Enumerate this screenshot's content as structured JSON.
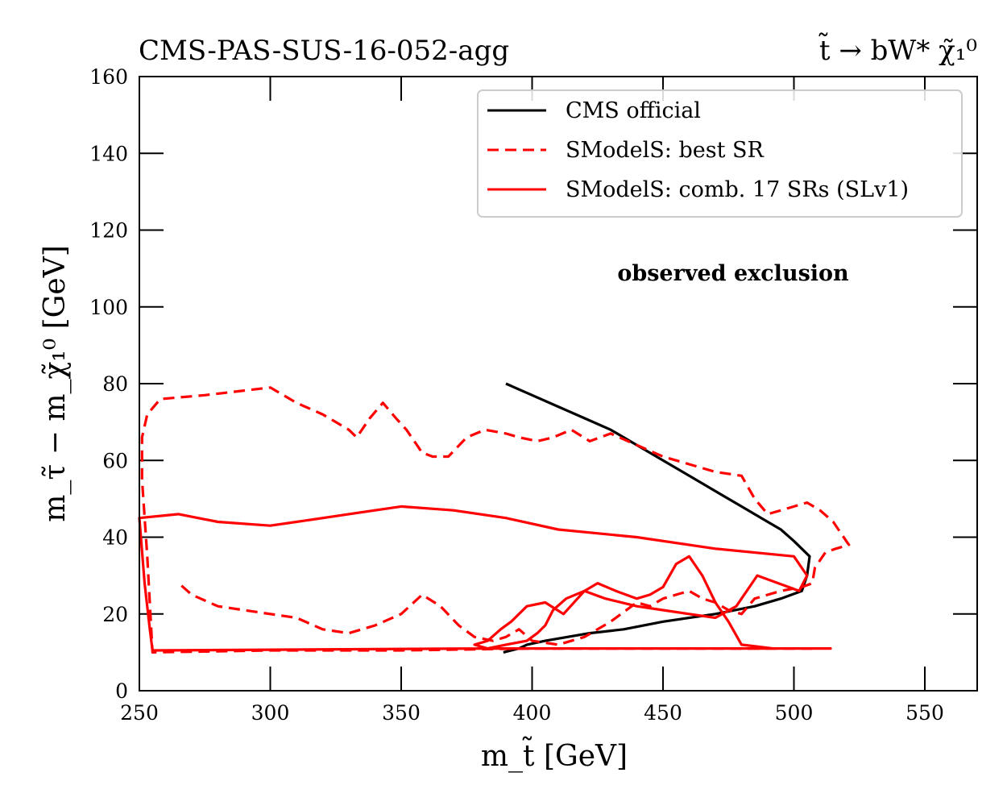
{
  "chart_data": {
    "type": "line",
    "title_left": "CMS-PAS-SUS-16-052-agg",
    "title_right": "t̃ → bW* χ̃₁⁰",
    "xlabel": "m_t̃ [GeV]",
    "ylabel": "m_τ̃ − m_χ̃₁⁰ [GeV]",
    "xlim": [
      250,
      570
    ],
    "ylim": [
      0,
      160
    ],
    "xticks": [
      250,
      300,
      350,
      400,
      450,
      500,
      550
    ],
    "yticks": [
      0,
      20,
      40,
      60,
      80,
      100,
      120,
      140,
      160
    ],
    "grid": false,
    "legend_position": "top-right",
    "annotation": "observed exclusion",
    "series": [
      {
        "name": "CMS official",
        "color": "#000000",
        "dash": "solid",
        "x": [
          390,
          400,
          410,
          420,
          430,
          440,
          450,
          460,
          470,
          480,
          490,
          495,
          500,
          506,
          505,
          503,
          495,
          485,
          470,
          450,
          435,
          422,
          405,
          398,
          395,
          389
        ],
        "y": [
          80,
          77,
          74,
          71,
          68,
          64,
          60,
          56,
          52,
          48,
          44,
          42,
          39,
          35,
          30,
          26,
          24,
          22,
          20,
          18,
          16,
          15,
          13,
          12,
          11,
          10
        ]
      },
      {
        "name": "SModelS: best SR",
        "color": "#ff0000",
        "dash": "dashed",
        "x": [
          507,
          480,
          440,
          400,
          350,
          300,
          255,
          253,
          251,
          251,
          253,
          258,
          275,
          300,
          310,
          320,
          325,
          330,
          333,
          338,
          343,
          348,
          352,
          355,
          358,
          362,
          368,
          375,
          382,
          390,
          395,
          402,
          408,
          415,
          422,
          430,
          440,
          450,
          460,
          470,
          480,
          485,
          490,
          495,
          500,
          505,
          510,
          515,
          520,
          521,
          516,
          512,
          508,
          507,
          503,
          495,
          485,
          480,
          475,
          470,
          465,
          460,
          455,
          450,
          445,
          440,
          430,
          420,
          410,
          400,
          395,
          390,
          385,
          378,
          372,
          365,
          358,
          350,
          340,
          330,
          320,
          310,
          300,
          290,
          280,
          270,
          265
        ],
        "y": [
          11,
          11,
          11,
          11,
          10.5,
          10.5,
          10,
          35,
          55,
          66,
          72,
          76,
          77,
          79,
          75,
          72,
          70,
          68,
          66,
          71,
          75,
          71,
          68,
          65,
          62,
          61,
          61,
          66,
          68,
          67,
          66,
          65,
          66,
          68,
          65,
          67,
          64,
          61,
          59,
          57,
          56,
          50,
          46,
          47,
          48,
          49,
          47,
          44,
          39,
          38,
          37,
          36,
          32,
          28,
          27,
          26,
          24,
          20,
          21,
          23,
          24,
          26,
          25,
          24,
          22,
          23,
          18,
          14,
          12,
          13,
          16,
          14,
          13,
          14,
          17,
          22,
          25,
          20,
          17,
          15,
          16,
          19,
          20,
          21,
          22,
          25,
          28
        ]
      },
      {
        "name": "SModelS: comb. 17 SRs (SLv1)",
        "color": "#ff0000",
        "dash": "solid",
        "x": [
          255,
          380,
          400,
          420,
          440,
          450,
          460,
          470,
          480,
          485,
          490,
          495,
          500,
          508,
          514,
          512,
          508,
          505,
          503,
          500,
          492,
          480,
          475,
          470,
          465,
          460,
          455,
          450,
          445,
          440,
          432,
          425,
          420,
          412,
          405,
          398,
          392,
          388,
          383,
          378,
          383,
          390,
          398,
          402,
          405,
          408,
          413,
          420,
          428,
          440,
          450,
          460,
          470,
          478,
          483,
          486,
          490,
          494,
          498,
          502,
          505,
          500,
          470,
          440,
          410,
          390,
          370,
          350,
          330,
          310,
          300,
          280,
          265,
          250,
          252,
          254,
          255
        ],
        "y": [
          10.5,
          11,
          11,
          11,
          11,
          11,
          11,
          11,
          11,
          11,
          11,
          11,
          11,
          11,
          11,
          11,
          11,
          11,
          11,
          11,
          11,
          12,
          18,
          23,
          30,
          35,
          33,
          27,
          25,
          24,
          26,
          28,
          26,
          20,
          23,
          22,
          18,
          16,
          13,
          12,
          11,
          12,
          13,
          15,
          17,
          21,
          24,
          26,
          24,
          22,
          21,
          20,
          19,
          22,
          27,
          30,
          29,
          28,
          27,
          26,
          30,
          35,
          37,
          40,
          42,
          45,
          47,
          48,
          46,
          44,
          43,
          44,
          46,
          45,
          28,
          16,
          10.5
        ]
      }
    ]
  }
}
